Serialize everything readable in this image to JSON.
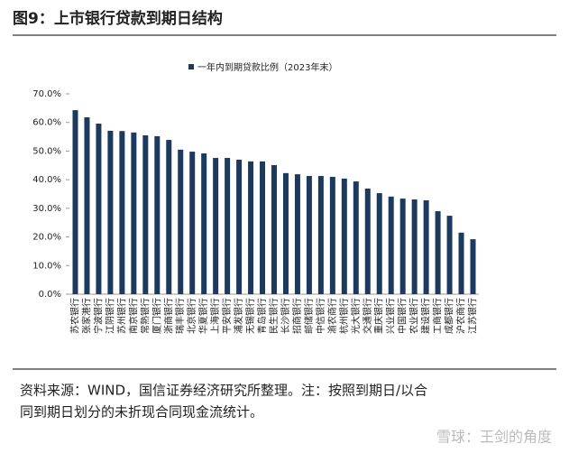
{
  "chart_data": {
    "type": "bar",
    "title": "图9：上市银行贷款到期日结构",
    "legend": "一年内到期贷款比例（2023年末）",
    "color": "#1c3a5e",
    "categories": [
      "苏农银行",
      "张家港行",
      "宁波银行",
      "江阴银行",
      "苏州银行",
      "南京银行",
      "常熟银行",
      "厦门银行",
      "浙商银行",
      "瑞丰银行",
      "北京银行",
      "华夏银行",
      "上海银行",
      "平安银行",
      "浦发银行",
      "无锡银行",
      "青岛银行",
      "民生银行",
      "长沙银行",
      "招商银行",
      "邮储银行",
      "中信银行",
      "渝农商行",
      "杭州银行",
      "光大银行",
      "交通银行",
      "重庆银行",
      "兴业银行",
      "中国银行",
      "农业银行",
      "建设银行",
      "工商银行",
      "成都银行",
      "沪农商行",
      "江苏银行"
    ],
    "values": [
      64.3,
      61.8,
      59.6,
      57.1,
      57.0,
      56.5,
      55.5,
      55.2,
      53.9,
      50.5,
      49.8,
      49.2,
      47.6,
      47.6,
      47.0,
      46.4,
      46.4,
      45.1,
      42.3,
      41.9,
      41.3,
      41.3,
      41.0,
      40.4,
      39.4,
      36.9,
      35.3,
      34.1,
      33.4,
      33.1,
      32.8,
      29.0,
      27.4,
      21.5,
      19.2
    ],
    "ylim": [
      0,
      70
    ],
    "yticks": [
      {
        "value": 0,
        "label": "0.0%"
      },
      {
        "value": 10,
        "label": "10.0%"
      },
      {
        "value": 20,
        "label": "20.0%"
      },
      {
        "value": 30,
        "label": "30.0%"
      },
      {
        "value": 40,
        "label": "40.0%"
      },
      {
        "value": 50,
        "label": "50.0%"
      },
      {
        "value": 60,
        "label": "60.0%"
      },
      {
        "value": 70,
        "label": "70.0%"
      }
    ],
    "notes": [
      "资料来源：WIND，国信证券经济研究所整理。注：按照到期日/以合",
      "同到期日划分的未折现合同现金流统计。"
    ],
    "watermark": "雪球：王剑的角度"
  }
}
